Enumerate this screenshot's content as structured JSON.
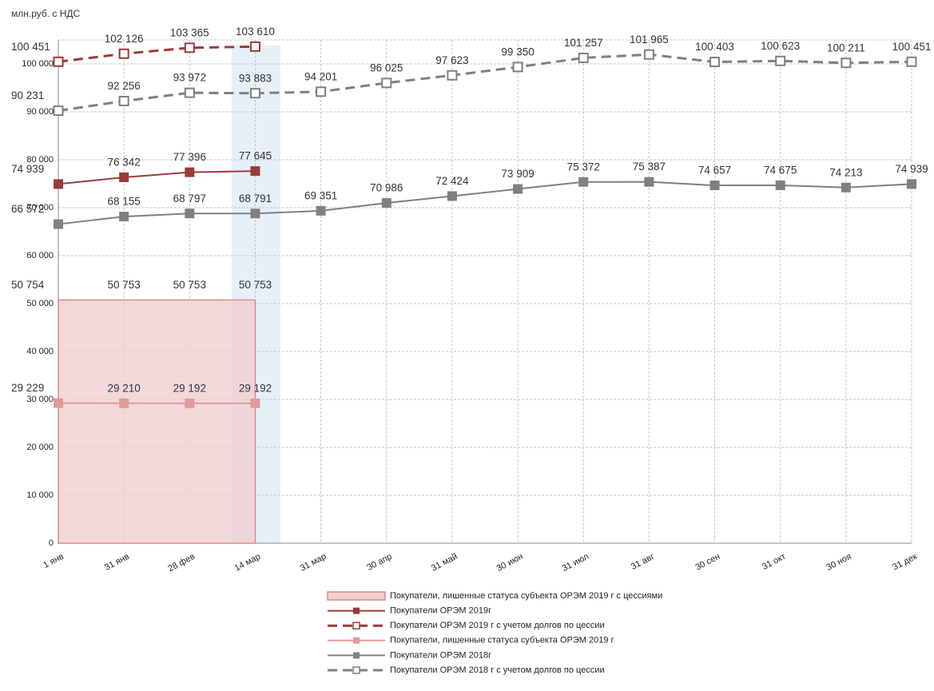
{
  "chart_data": {
    "type": "line",
    "unit_label": "млн.руб. с НДС",
    "categories": [
      "1 янв",
      "31 янв",
      "28 фев",
      "14 мар",
      "31 мар",
      "30 апр",
      "31 май",
      "30 июн",
      "31 июл",
      "31 авг",
      "30 сен",
      "31 окт",
      "30 ноя",
      "31 дек"
    ],
    "ylim": [
      0,
      105000
    ],
    "yticks": [
      0,
      {
        "value": 10000,
        "label": "10 000"
      },
      {
        "value": 20000,
        "label": "20 000"
      },
      {
        "value": 30000,
        "label": "30 000"
      },
      {
        "value": 40000,
        "label": "40 000"
      },
      {
        "value": 50000,
        "label": "50 000"
      },
      {
        "value": 60000,
        "label": "60 000"
      },
      {
        "value": 70000,
        "label": "70 000"
      },
      {
        "value": 80000,
        "label": "80 000"
      },
      {
        "value": 90000,
        "label": "90 000"
      },
      {
        "value": 100000,
        "label": "100 000"
      }
    ],
    "grid": true,
    "series": [
      {
        "name": "Покупатели, лишенные статуса субъекта ОРЭМ 2019 г с цессиями",
        "color": "#d98c8c",
        "style": "area",
        "dashed": false,
        "marker": "none",
        "values": [
          50754,
          50753,
          50753,
          50753,
          null,
          null,
          null,
          null,
          null,
          null,
          null,
          null,
          null,
          null
        ],
        "value_labels": [
          "50 754",
          "50 753",
          "50 753",
          "50 753",
          null,
          null,
          null,
          null,
          null,
          null,
          null,
          null,
          null,
          null
        ]
      },
      {
        "name": "Покупатели ОРЭМ 2019г",
        "color": "#9b3a3a",
        "style": "line",
        "dashed": false,
        "marker": "filled",
        "values": [
          74939,
          76342,
          77396,
          77645,
          null,
          null,
          null,
          null,
          null,
          null,
          null,
          null,
          null,
          null
        ],
        "value_labels": [
          "74 939",
          "76 342",
          "77 396",
          "77 645",
          null,
          null,
          null,
          null,
          null,
          null,
          null,
          null,
          null,
          null
        ]
      },
      {
        "name": "Покупатели ОРЭМ 2019 г с учетом долгов по цессии",
        "color": "#9b3a3a",
        "style": "line",
        "dashed": true,
        "marker": "hollow",
        "values": [
          100451,
          102126,
          103365,
          103610,
          null,
          null,
          null,
          null,
          null,
          null,
          null,
          null,
          null,
          null
        ],
        "value_labels": [
          "100 451",
          "102 126",
          "103 365",
          "103 610",
          null,
          null,
          null,
          null,
          null,
          null,
          null,
          null,
          null,
          null
        ]
      },
      {
        "name": "Покупатели, лишенные статуса субъекта ОРЭМ 2019 г",
        "color": "#e29a9a",
        "style": "line",
        "dashed": false,
        "marker": "filled",
        "values": [
          29229,
          29210,
          29192,
          29192,
          null,
          null,
          null,
          null,
          null,
          null,
          null,
          null,
          null,
          null
        ],
        "value_labels": [
          "29 229",
          "29 210",
          "29 192",
          "29 192",
          null,
          null,
          null,
          null,
          null,
          null,
          null,
          null,
          null,
          null
        ]
      },
      {
        "name": "Покупатели ОРЭМ 2018г",
        "color": "#808080",
        "style": "line",
        "dashed": false,
        "marker": "filled",
        "values": [
          66572,
          68155,
          68797,
          68791,
          69351,
          70986,
          72424,
          73909,
          75372,
          75387,
          74657,
          74675,
          74213,
          74939
        ],
        "value_labels": [
          "66 572",
          "68 155",
          "68 797",
          "68 791",
          "69 351",
          "70 986",
          "72 424",
          "73 909",
          "75 372",
          "75 387",
          "74 657",
          "74 675",
          "74 213",
          "74 939"
        ]
      },
      {
        "name": "Покупатели ОРЭМ 2018 г с учетом долгов по цессии",
        "color": "#808080",
        "style": "line",
        "dashed": true,
        "marker": "hollow",
        "values": [
          90231,
          92256,
          93972,
          93883,
          94201,
          96025,
          97623,
          99350,
          101257,
          101965,
          100403,
          100623,
          100211,
          100451
        ],
        "value_labels": [
          "90 231",
          "92 256",
          "93 972",
          "93 883",
          "94 201",
          "96 025",
          "97 623",
          "99 350",
          "101 257",
          "101 965",
          "100 403",
          "100 623",
          "100 211",
          "100 451"
        ]
      }
    ]
  }
}
